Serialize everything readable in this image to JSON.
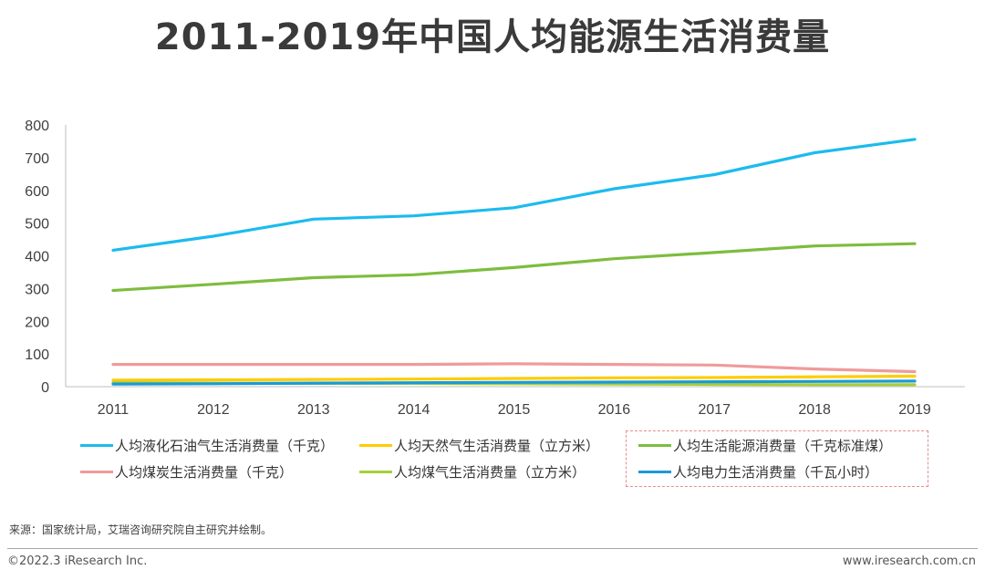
{
  "title": "2011-2019年中国人均能源生活消费量",
  "source": "来源：国家统计局，艾瑞咨询研究院自主研究并绘制。",
  "copyright": "©2022.3 iResearch Inc.",
  "website": "www.iresearch.com.cn",
  "chart_data": {
    "type": "line",
    "x": [
      "2011",
      "2012",
      "2013",
      "2014",
      "2015",
      "2016",
      "2017",
      "2018",
      "2019"
    ],
    "ylim": [
      0,
      800
    ],
    "yticks": [
      0,
      100,
      200,
      300,
      400,
      500,
      600,
      700,
      800
    ],
    "grid": false,
    "legend_position": "bottom",
    "series": [
      {
        "name": "人均液化石油气生活消费量（千克）",
        "color": "#1cbbee",
        "values": [
          417,
          460,
          512,
          522,
          547,
          605,
          648,
          715,
          756
        ]
      },
      {
        "name": "人均天然气生活消费量（立方米）",
        "color": "#ffcc00",
        "values": [
          20,
          21,
          22,
          23,
          25,
          27,
          28,
          30,
          32
        ]
      },
      {
        "name": "人均生活能源消费量（千克标准煤）",
        "color": "#7dbd3e",
        "values": [
          294,
          313,
          333,
          342,
          364,
          391,
          410,
          430,
          437
        ]
      },
      {
        "name": "人均煤炭生活消费量（千克）",
        "color": "#f09a9a",
        "values": [
          68,
          68,
          68,
          68,
          70,
          68,
          66,
          54,
          46
        ]
      },
      {
        "name": "人均煤气生活消费量（立方米）",
        "color": "#a8cf38",
        "values": [
          12,
          11,
          10,
          10,
          9,
          8,
          7,
          6,
          6
        ]
      },
      {
        "name": "人均电力生活消费量（千瓦小时）",
        "color": "#1a9ad6",
        "values": [
          8,
          9,
          11,
          12,
          13,
          14,
          15,
          16,
          17
        ]
      }
    ]
  }
}
